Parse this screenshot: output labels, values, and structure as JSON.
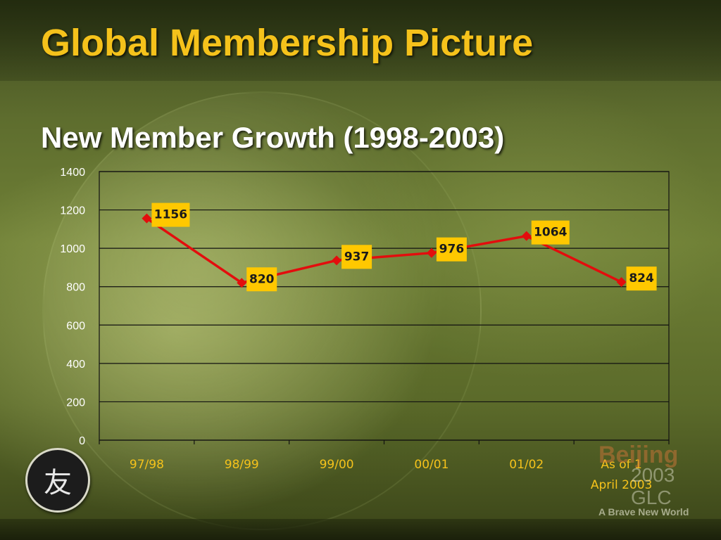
{
  "slide": {
    "title": "Global Membership Picture",
    "subtitle": "New Member Growth (1998-2003)",
    "watermark": {
      "beijing": "Beijing",
      "glc": "2003 GLC",
      "tagline": "A Brave New World"
    },
    "logo_glyph": "友"
  },
  "colors": {
    "title": "#f5c21b",
    "line": "#e30d0d",
    "label_box": "#ffc800",
    "x_tick": "#f5c21b",
    "y_tick": "#ffffff"
  },
  "chart_data": {
    "type": "line",
    "title": "New Member Growth (1998-2003)",
    "xlabel": "",
    "ylabel": "",
    "categories": [
      "97/98",
      "98/99",
      "99/00",
      "00/01",
      "01/02",
      "As of 1 April 2003"
    ],
    "category_lines": [
      [
        "97/98"
      ],
      [
        "98/99"
      ],
      [
        "99/00"
      ],
      [
        "00/01"
      ],
      [
        "01/02"
      ],
      [
        "As of 1",
        "April 2003"
      ]
    ],
    "values": [
      1156,
      820,
      937,
      976,
      1064,
      824
    ],
    "ylim": [
      0,
      1400
    ],
    "yticks": [
      0,
      200,
      400,
      600,
      800,
      1000,
      1200,
      1400
    ],
    "grid": true,
    "legend": "none",
    "data_labels": true
  }
}
